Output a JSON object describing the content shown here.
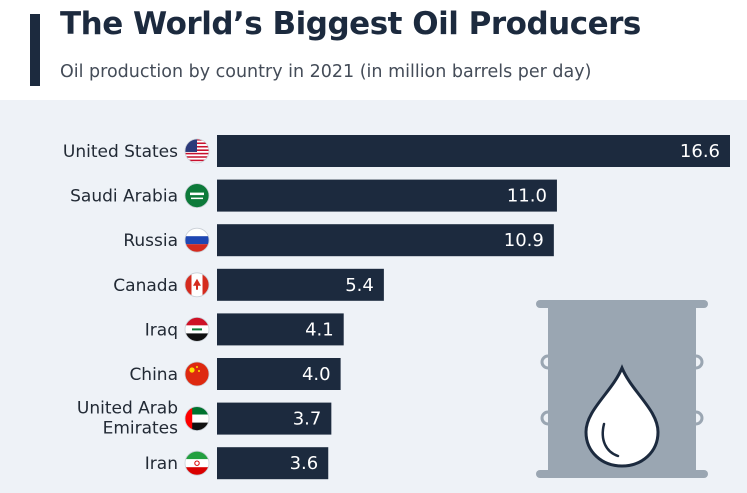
{
  "header": {
    "title": "The World’s Biggest Oil Producers",
    "subtitle": "Oil production by country in 2021 (in million barrels per day)"
  },
  "colors": {
    "bar": "#1c2a3e",
    "background": "#eef2f7",
    "barrel": "#9aa6b2"
  },
  "chart_data": {
    "type": "bar",
    "orientation": "horizontal",
    "title": "The World’s Biggest Oil Producers",
    "subtitle": "Oil production by country in 2021 (in million barrels per day)",
    "categories": [
      "United States",
      "Saudi Arabia",
      "Russia",
      "Canada",
      "Iraq",
      "China",
      "United Arab Emirates",
      "Iran"
    ],
    "values": [
      16.6,
      11.0,
      10.9,
      5.4,
      4.1,
      4.0,
      3.7,
      3.6
    ],
    "value_labels": [
      "16.6",
      "11.0",
      "10.9",
      "5.4",
      "4.1",
      "4.0",
      "3.7",
      "3.6"
    ],
    "flag_icons": [
      "flag-us-icon",
      "flag-saudi-arabia-icon",
      "flag-russia-icon",
      "flag-canada-icon",
      "flag-iraq-icon",
      "flag-china-icon",
      "flag-uae-icon",
      "flag-iran-icon"
    ],
    "xlim": [
      0,
      16.6
    ],
    "grid": false,
    "legend": "none",
    "decoration": "oil-barrel-icon"
  }
}
